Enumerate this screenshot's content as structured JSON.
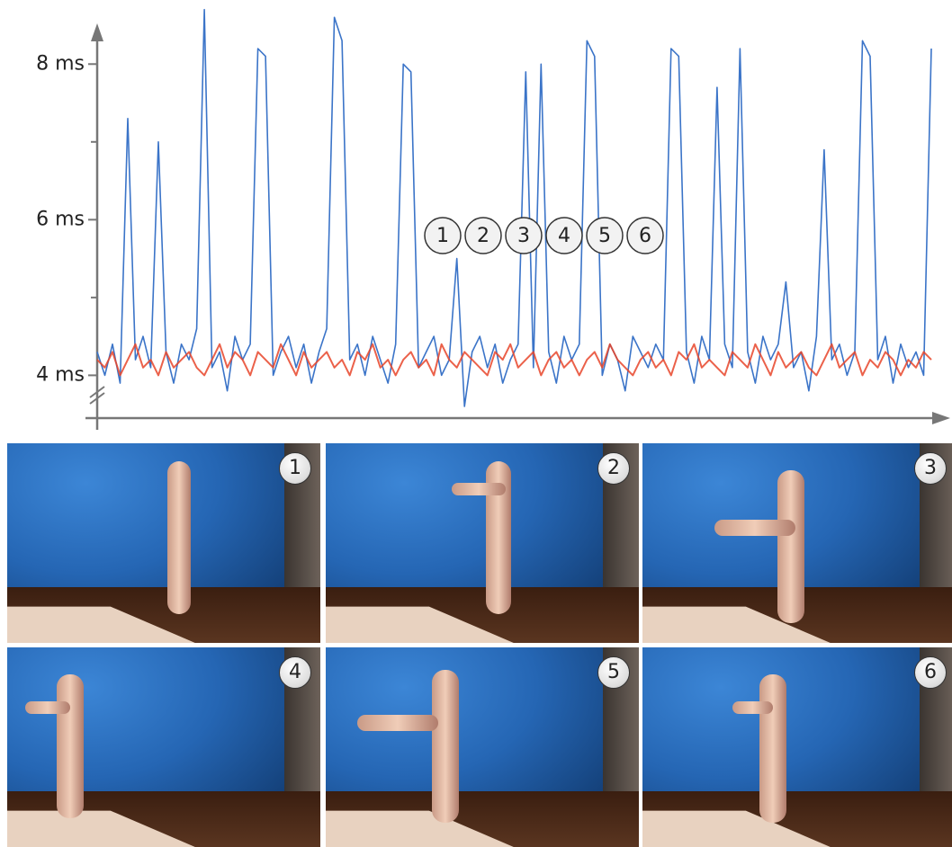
{
  "chart_data": {
    "type": "line",
    "ylim": [
      3.45,
      8.5
    ],
    "yticks": [
      {
        "value": 4,
        "label": "4 ms"
      },
      {
        "value": 6,
        "label": "6 ms"
      },
      {
        "value": 8,
        "label": "8 ms"
      }
    ],
    "yminor": [
      5,
      7
    ],
    "markers": [
      "1",
      "2",
      "3",
      "4",
      "5",
      "6"
    ],
    "series": [
      {
        "color": "#3b74c8",
        "values": [
          4.3,
          4.0,
          4.4,
          3.9,
          7.3,
          4.2,
          4.5,
          4.1,
          7.0,
          4.3,
          3.9,
          4.4,
          4.2,
          4.6,
          8.7,
          4.1,
          4.3,
          3.8,
          4.5,
          4.2,
          4.4,
          8.2,
          8.1,
          4.0,
          4.3,
          4.5,
          4.1,
          4.4,
          3.9,
          4.3,
          4.6,
          8.6,
          8.3,
          4.2,
          4.4,
          4.0,
          4.5,
          4.2,
          3.9,
          4.4,
          8.0,
          7.9,
          4.1,
          4.3,
          4.5,
          4.0,
          4.2,
          5.5,
          3.6,
          4.3,
          4.5,
          4.1,
          4.4,
          3.9,
          4.2,
          4.4,
          7.9,
          4.1,
          8.0,
          4.3,
          3.9,
          4.5,
          4.2,
          4.4,
          8.3,
          8.1,
          4.0,
          4.4,
          4.2,
          3.8,
          4.5,
          4.3,
          4.1,
          4.4,
          4.2,
          8.2,
          8.1,
          4.3,
          3.9,
          4.5,
          4.2,
          7.7,
          4.4,
          4.1,
          8.2,
          4.3,
          3.9,
          4.5,
          4.2,
          4.4,
          5.2,
          4.1,
          4.3,
          3.8,
          4.5,
          6.9,
          4.2,
          4.4,
          4.0,
          4.3,
          8.3,
          8.1,
          4.2,
          4.5,
          3.9,
          4.4,
          4.1,
          4.3,
          4.0,
          8.2
        ]
      },
      {
        "color": "#e8452a",
        "values": [
          4.2,
          4.1,
          4.3,
          4.0,
          4.2,
          4.4,
          4.1,
          4.2,
          4.0,
          4.3,
          4.1,
          4.2,
          4.3,
          4.1,
          4.0,
          4.2,
          4.4,
          4.1,
          4.3,
          4.2,
          4.0,
          4.3,
          4.2,
          4.1,
          4.4,
          4.2,
          4.0,
          4.3,
          4.1,
          4.2,
          4.3,
          4.1,
          4.2,
          4.0,
          4.3,
          4.2,
          4.4,
          4.1,
          4.2,
          4.0,
          4.2,
          4.3,
          4.1,
          4.2,
          4.0,
          4.4,
          4.2,
          4.1,
          4.3,
          4.2,
          4.1,
          4.0,
          4.3,
          4.2,
          4.4,
          4.1,
          4.2,
          4.3,
          4.0,
          4.2,
          4.3,
          4.1,
          4.2,
          4.0,
          4.2,
          4.3,
          4.1,
          4.4,
          4.2,
          4.1,
          4.0,
          4.2,
          4.3,
          4.1,
          4.2,
          4.0,
          4.3,
          4.2,
          4.4,
          4.1,
          4.2,
          4.1,
          4.0,
          4.3,
          4.2,
          4.1,
          4.4,
          4.2,
          4.0,
          4.3,
          4.1,
          4.2,
          4.3,
          4.1,
          4.0,
          4.2,
          4.4,
          4.1,
          4.2,
          4.3,
          4.0,
          4.2,
          4.1,
          4.3,
          4.2,
          4.0,
          4.2,
          4.1,
          4.3,
          4.2
        ]
      }
    ]
  }
}
